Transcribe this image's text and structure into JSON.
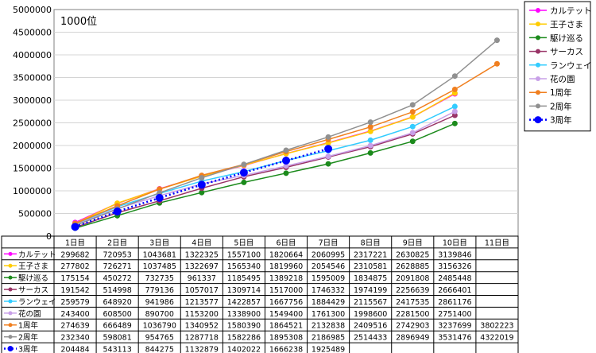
{
  "chart_data": {
    "type": "line",
    "title": "1000位",
    "xlabel": "",
    "ylabel": "",
    "categories": [
      "1日目",
      "2日目",
      "3日目",
      "4日目",
      "5日目",
      "6日目",
      "7日目",
      "8日目",
      "9日目",
      "10日目",
      "11日目"
    ],
    "ylim": [
      0,
      5000000
    ],
    "yticks": [
      "0",
      "500000",
      "1000000",
      "1500000",
      "2000000",
      "2500000",
      "3000000",
      "3500000",
      "4000000",
      "4500000",
      "5000000"
    ],
    "grid": true,
    "legend_position": "right",
    "series": [
      {
        "name": "カルテット",
        "color": "#ff00ff",
        "marker": "circle",
        "dotted": false,
        "values": [
          299682,
          720953,
          1043681,
          1322325,
          1557100,
          1820664,
          2060995,
          2317221,
          2630825,
          3139846,
          null
        ]
      },
      {
        "name": "王子さま",
        "color": "#ffcc00",
        "marker": "circle",
        "dotted": false,
        "values": [
          277802,
          726271,
          1037485,
          1322697,
          1565340,
          1819960,
          2054546,
          2310581,
          2628885,
          3156326,
          null
        ]
      },
      {
        "name": "駆け巡る",
        "color": "#1b8a1b",
        "marker": "circle",
        "dotted": false,
        "values": [
          175154,
          450272,
          732735,
          961337,
          1185495,
          1389218,
          1595009,
          1834875,
          2091808,
          2485448,
          null
        ]
      },
      {
        "name": "サーカス",
        "color": "#993366",
        "marker": "circle",
        "dotted": false,
        "values": [
          191542,
          514998,
          779136,
          1057017,
          1309714,
          1517000,
          1746332,
          1974199,
          2256639,
          2666401,
          null
        ]
      },
      {
        "name": "ランウェイ",
        "color": "#33ccff",
        "marker": "circle",
        "dotted": false,
        "values": [
          259579,
          648920,
          941986,
          1213577,
          1422857,
          1667756,
          1884429,
          2115567,
          2417535,
          2861176,
          null
        ]
      },
      {
        "name": "花の園",
        "color": "#c8a0e8",
        "marker": "circle",
        "dotted": false,
        "values": [
          243400,
          608500,
          890700,
          1153200,
          1338900,
          1549400,
          1761300,
          1998600,
          2281500,
          2751400,
          null
        ]
      },
      {
        "name": "1周年",
        "color": "#f07f1f",
        "marker": "circle",
        "dotted": false,
        "values": [
          274639,
          666489,
          1036790,
          1340952,
          1580390,
          1864521,
          2132838,
          2409516,
          2742903,
          3237699,
          3802223
        ]
      },
      {
        "name": "2周年",
        "color": "#909090",
        "marker": "circle",
        "dotted": false,
        "values": [
          232340,
          598081,
          954765,
          1287718,
          1582286,
          1895308,
          2186985,
          2514433,
          2896949,
          3531476,
          4322019
        ]
      },
      {
        "name": "3周年",
        "color": "#0000ff",
        "marker": "circle",
        "dotted": true,
        "values": [
          204484,
          543113,
          844275,
          1132879,
          1402022,
          1666238,
          1925489,
          null,
          null,
          null,
          null
        ]
      }
    ]
  }
}
